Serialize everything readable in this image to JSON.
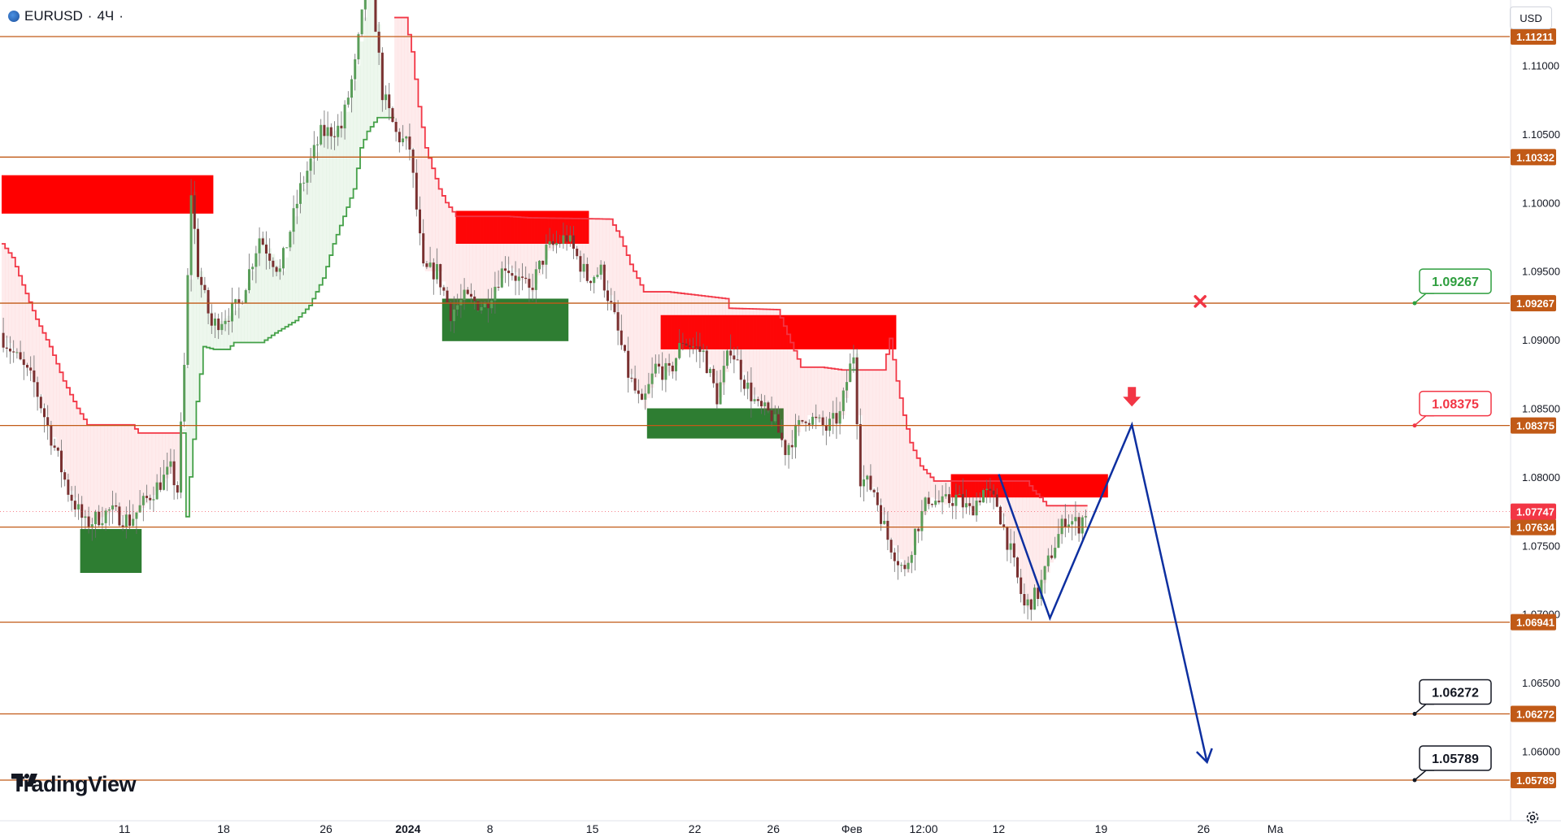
{
  "header": {
    "symbol": "EURUSD",
    "separator": "·",
    "interval": "4Ч",
    "trail": "·"
  },
  "currency_label": "USD",
  "brand": "TradingView",
  "chart_data": {
    "type": "candlestick",
    "title": "",
    "ylim": [
      1.0552,
      1.123
    ],
    "x_ticks": [
      "11",
      "18",
      "26",
      "2024",
      "8",
      "15",
      "22",
      "26",
      "Фев",
      "12:00",
      "12",
      "19",
      "26",
      "Ма"
    ],
    "y_ticks": [
      "1.11000",
      "1.10500",
      "1.10000",
      "1.09500",
      "1.09000",
      "1.08500",
      "1.08000",
      "1.07500",
      "1.07000",
      "1.06500",
      "1.06000"
    ],
    "current_price": "1.07747",
    "horizontal_levels": [
      "1.11211",
      "1.10332",
      "1.09267",
      "1.08375",
      "1.07634",
      "1.06941",
      "1.06272",
      "1.05789"
    ],
    "annotations": [
      {
        "label": "1.09267",
        "color": "#2e9e3e",
        "style": "green"
      },
      {
        "label": "1.08375",
        "color": "#f23645",
        "style": "red"
      },
      {
        "label": "1.06272",
        "color": "#131722",
        "style": "black"
      },
      {
        "label": "1.05789",
        "color": "#131722",
        "style": "black"
      }
    ],
    "supply_zones": [
      {
        "t0": 0,
        "t1": 62,
        "top": 1.102,
        "bottom": 1.0992
      },
      {
        "t0": 133,
        "t1": 172,
        "top": 1.0994,
        "bottom": 1.097
      },
      {
        "t0": 193,
        "t1": 262,
        "top": 1.0918,
        "bottom": 1.0893
      },
      {
        "t0": 278,
        "t1": 324,
        "top": 1.0802,
        "bottom": 1.0785
      }
    ],
    "demand_zones": [
      {
        "t0": 23,
        "t1": 41,
        "top": 1.0762,
        "bottom": 1.073
      },
      {
        "t0": 129,
        "t1": 166,
        "top": 1.093,
        "bottom": 1.0899
      },
      {
        "t0": 189,
        "t1": 229,
        "top": 1.085,
        "bottom": 1.0828
      }
    ],
    "projection": {
      "color": "#0d2fa0",
      "x": [
        292,
        307,
        331,
        353
      ],
      "y": [
        1.0802,
        1.0697,
        1.0838,
        1.0592
      ]
    },
    "trail": [
      [
        0,
        1.097
      ],
      [
        3,
        1.096
      ],
      [
        6,
        1.094
      ],
      [
        10,
        1.0915
      ],
      [
        14,
        1.0895
      ],
      [
        18,
        1.087
      ],
      [
        22,
        1.085
      ],
      [
        25,
        1.0838
      ],
      [
        38,
        1.0838
      ],
      [
        40,
        1.0832
      ],
      [
        53,
        1.0832
      ],
      [
        53,
        1.0742
      ],
      [
        55,
        1.08
      ],
      [
        57,
        1.0855
      ],
      [
        59,
        1.0895
      ],
      [
        62,
        1.0893
      ],
      [
        66,
        1.0893
      ],
      [
        68,
        1.0898
      ],
      [
        76,
        1.0898
      ],
      [
        80,
        1.0905
      ],
      [
        86,
        1.0914
      ],
      [
        90,
        1.0925
      ],
      [
        94,
        1.0945
      ],
      [
        97,
        1.097
      ],
      [
        100,
        1.099
      ],
      [
        103,
        1.101
      ],
      [
        105,
        1.104
      ],
      [
        107,
        1.1052
      ],
      [
        110,
        1.1062
      ],
      [
        114,
        1.1062
      ],
      [
        115,
        1.1135
      ],
      [
        118,
        1.1135
      ],
      [
        120,
        1.111
      ],
      [
        122,
        1.107
      ],
      [
        124,
        1.104
      ],
      [
        126,
        1.1025
      ],
      [
        128,
        1.101
      ],
      [
        130,
        1.1
      ],
      [
        133,
        1.099
      ],
      [
        148,
        1.099
      ],
      [
        154,
        1.0989
      ],
      [
        178,
        1.0988
      ],
      [
        181,
        1.0975
      ],
      [
        184,
        1.0955
      ],
      [
        186,
        1.0945
      ],
      [
        188,
        1.0935
      ],
      [
        195,
        1.0935
      ],
      [
        212,
        1.093
      ],
      [
        213,
        1.0923
      ],
      [
        227,
        1.0922
      ],
      [
        234,
        1.088
      ],
      [
        240,
        1.088
      ],
      [
        246,
        1.0878
      ],
      [
        258,
        1.0878
      ],
      [
        260,
        1.0901
      ],
      [
        262,
        1.087
      ],
      [
        264,
        1.0845
      ],
      [
        266,
        1.0825
      ],
      [
        269,
        1.0808
      ],
      [
        273,
        1.0797
      ],
      [
        300,
        1.0797
      ],
      [
        302,
        1.079
      ],
      [
        304,
        1.0785
      ],
      [
        306,
        1.0779
      ],
      [
        318,
        1.0779
      ]
    ],
    "x_tick_positions": [
      36,
      65,
      95,
      119,
      143,
      173,
      203,
      226,
      249,
      270,
      292,
      322,
      352,
      373
    ],
    "arrow_down": {
      "x": 331,
      "y": 1.0849,
      "color": "#f23645"
    },
    "x_mark": {
      "x": 351,
      "y": 1.0928,
      "color": "#f23645"
    }
  }
}
